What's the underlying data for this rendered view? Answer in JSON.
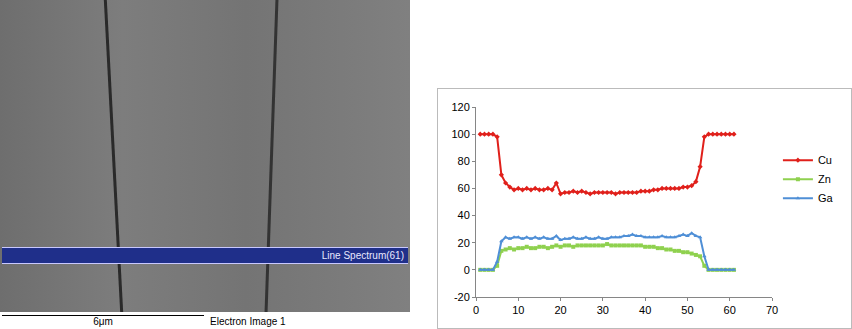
{
  "image": {
    "overlay": "Line Spectrum(61)",
    "scale_bar": "6μm",
    "caption": "Electron Image 1"
  },
  "chart_data": {
    "type": "line",
    "x": [
      1,
      2,
      3,
      4,
      5,
      6,
      7,
      8,
      9,
      10,
      11,
      12,
      13,
      14,
      15,
      16,
      17,
      18,
      19,
      20,
      21,
      22,
      23,
      24,
      25,
      26,
      27,
      28,
      29,
      30,
      31,
      32,
      33,
      34,
      35,
      36,
      37,
      38,
      39,
      40,
      41,
      42,
      43,
      44,
      45,
      46,
      47,
      48,
      49,
      50,
      51,
      52,
      53,
      54,
      55,
      56,
      57,
      58,
      59,
      60,
      61
    ],
    "series": [
      {
        "name": "Cu",
        "color": "#e0201b",
        "marker": "diamond",
        "values": [
          100,
          100,
          100,
          100,
          98,
          70,
          64,
          61,
          59,
          60,
          59,
          60,
          59,
          60,
          59,
          59,
          60,
          59,
          64,
          56,
          57,
          57,
          58,
          57,
          58,
          57,
          56,
          57,
          57,
          57,
          57,
          57,
          56,
          57,
          57,
          57,
          57,
          57,
          58,
          58,
          58,
          59,
          59,
          60,
          60,
          60,
          60,
          60,
          61,
          61,
          62,
          65,
          76,
          98,
          100,
          100,
          100,
          100,
          100,
          100,
          100
        ]
      },
      {
        "name": "Zn",
        "color": "#8fd14f",
        "marker": "square",
        "values": [
          0,
          0,
          0,
          0,
          3,
          14,
          15,
          16,
          15,
          16,
          16,
          17,
          16,
          16,
          17,
          17,
          16,
          17,
          18,
          17,
          18,
          18,
          17,
          18,
          18,
          18,
          18,
          18,
          18,
          18,
          19,
          18,
          18,
          18,
          18,
          18,
          18,
          18,
          18,
          17,
          17,
          17,
          16,
          16,
          15,
          15,
          14,
          14,
          13,
          13,
          12,
          11,
          10,
          3,
          0,
          0,
          0,
          0,
          0,
          0,
          0
        ]
      },
      {
        "name": "Ga",
        "color": "#4f8fd6",
        "marker": "triangle-up",
        "values": [
          0,
          0,
          0,
          0,
          6,
          21,
          24,
          23,
          24,
          24,
          23,
          24,
          23,
          24,
          23,
          24,
          23,
          23,
          25,
          22,
          23,
          23,
          24,
          23,
          23,
          24,
          23,
          23,
          24,
          23,
          23,
          24,
          24,
          24,
          25,
          25,
          26,
          25,
          25,
          24,
          24,
          24,
          24,
          25,
          24,
          24,
          24,
          25,
          26,
          25,
          27,
          25,
          24,
          10,
          0,
          0,
          0,
          0,
          0,
          0,
          0
        ]
      }
    ],
    "xlim": [
      0,
      70
    ],
    "xticks": [
      0,
      10,
      20,
      30,
      40,
      50,
      60,
      70
    ],
    "ylim": [
      -20,
      120
    ],
    "yticks": [
      -20,
      0,
      20,
      40,
      60,
      80,
      100,
      120
    ],
    "grid": false,
    "legend": "right"
  }
}
